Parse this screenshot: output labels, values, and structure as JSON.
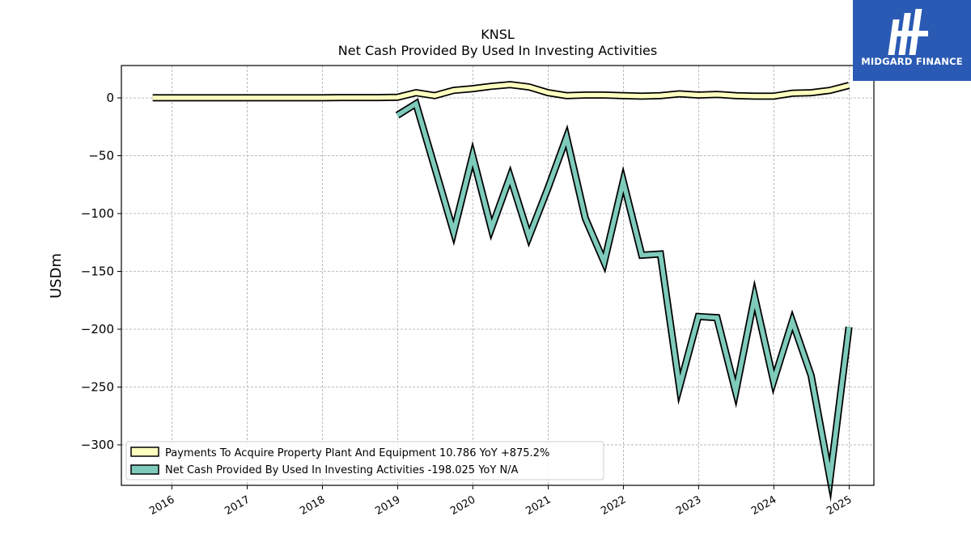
{
  "brand": {
    "name": "MIDGARD FINANCE",
    "bg_color": "#2a5ab3"
  },
  "chart_data": {
    "type": "line",
    "title": "KNSL",
    "subtitle": "Net Cash Provided By Used In Investing Activities",
    "ylabel": "USDm",
    "xlabel": "",
    "ylim": [
      -335,
      28
    ],
    "xlim": [
      "2015-05-01",
      "2025-05-01"
    ],
    "grid": true,
    "legend_position": "lower-left",
    "x_ticks": [
      "2016",
      "2017",
      "2018",
      "2019",
      "2020",
      "2021",
      "2022",
      "2023",
      "2024",
      "2025"
    ],
    "y_ticks": [
      0,
      -50,
      -100,
      -150,
      -200,
      -250,
      -300
    ],
    "y_tick_labels": [
      "0",
      "−50",
      "−100",
      "−150",
      "−200",
      "−250",
      "−300"
    ],
    "series": [
      {
        "name": "Payments To Acquire Property Plant And Equipment",
        "legend_label": "Payments To Acquire Property Plant And Equipment  10.786 YoY +875.2%",
        "color": "#ffffc0",
        "points": [
          [
            "2015-09-30",
            0.1
          ],
          [
            "2016-12-31",
            0.1
          ],
          [
            "2017-03-31",
            0.1
          ],
          [
            "2017-12-31",
            0.1
          ],
          [
            "2018-03-31",
            0.3
          ],
          [
            "2018-09-30",
            0.3
          ],
          [
            "2018-12-31",
            0.5
          ],
          [
            "2019-03-31",
            4.5
          ],
          [
            "2019-06-30",
            2.0
          ],
          [
            "2019-09-30",
            6.5
          ],
          [
            "2019-12-31",
            8.0
          ],
          [
            "2020-03-31",
            10.0
          ],
          [
            "2020-06-30",
            11.5
          ],
          [
            "2020-09-30",
            9.5
          ],
          [
            "2020-12-31",
            4.5
          ],
          [
            "2021-03-31",
            2.0
          ],
          [
            "2021-06-30",
            2.5
          ],
          [
            "2021-09-30",
            2.5
          ],
          [
            "2021-12-31",
            2.0
          ],
          [
            "2022-03-31",
            1.5
          ],
          [
            "2022-06-30",
            2.0
          ],
          [
            "2022-09-30",
            3.5
          ],
          [
            "2022-12-31",
            2.5
          ],
          [
            "2023-03-31",
            3.0
          ],
          [
            "2023-06-30",
            2.0
          ],
          [
            "2023-09-30",
            1.5
          ],
          [
            "2023-12-31",
            1.5
          ],
          [
            "2024-03-31",
            4.0
          ],
          [
            "2024-06-30",
            4.5
          ],
          [
            "2024-09-30",
            6.5
          ],
          [
            "2024-12-31",
            10.786
          ]
        ]
      },
      {
        "name": "Net Cash Provided By Used In Investing Activities",
        "legend_label": "Net Cash Provided By Used In Investing Activities  -198.025 YoY N/A",
        "color": "#7ecbbc",
        "points": [
          [
            "2018-12-31",
            -15.0
          ],
          [
            "2019-03-31",
            -5.0
          ],
          [
            "2019-06-30",
            -60.0
          ],
          [
            "2019-09-30",
            -116.0
          ],
          [
            "2019-12-31",
            -50.0
          ],
          [
            "2020-03-31",
            -113.0
          ],
          [
            "2020-06-30",
            -68.0
          ],
          [
            "2020-09-30",
            -120.0
          ],
          [
            "2020-12-31",
            -78.0
          ],
          [
            "2021-03-31",
            -34.0
          ],
          [
            "2021-06-30",
            -104.0
          ],
          [
            "2021-09-30",
            -142.0
          ],
          [
            "2021-12-31",
            -72.0
          ],
          [
            "2022-03-31",
            -136.0
          ],
          [
            "2022-06-30",
            -135.0
          ],
          [
            "2022-09-30",
            -250.0
          ],
          [
            "2022-12-31",
            -189.0
          ],
          [
            "2023-03-31",
            -190.0
          ],
          [
            "2023-06-30",
            -254.0
          ],
          [
            "2023-09-30",
            -172.0
          ],
          [
            "2023-12-31",
            -245.0
          ],
          [
            "2024-03-31",
            -193.0
          ],
          [
            "2024-06-30",
            -240.0
          ],
          [
            "2024-09-30",
            -329.0
          ],
          [
            "2024-12-31",
            -198.025
          ]
        ]
      }
    ]
  }
}
